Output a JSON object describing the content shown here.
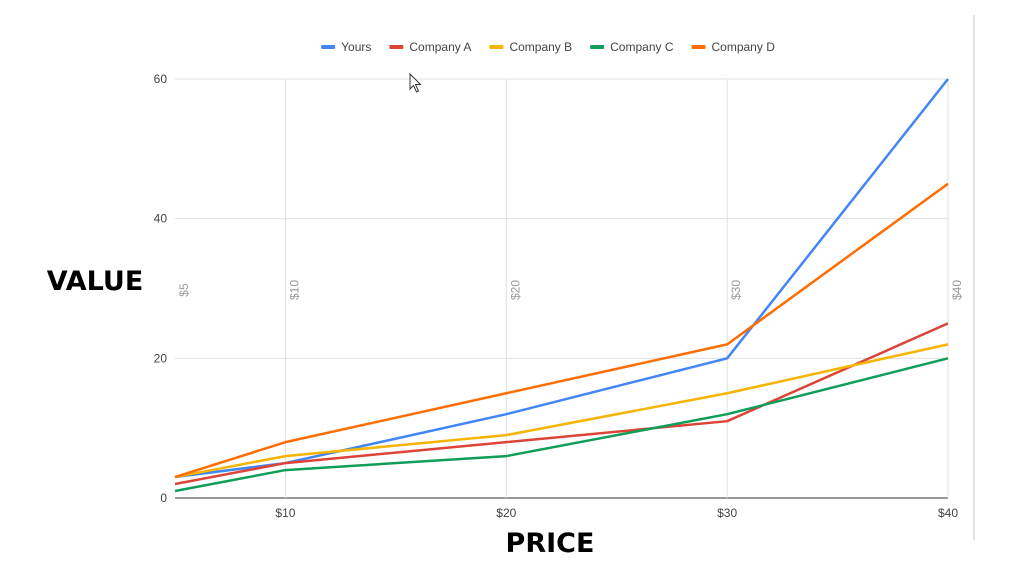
{
  "chart_data": {
    "type": "line",
    "x": [
      5,
      10,
      20,
      30,
      40
    ],
    "x_tick_labels": [
      "$10",
      "$20",
      "$30",
      "$40"
    ],
    "x_tick_values": [
      10,
      20,
      30,
      40
    ],
    "vertical_labels": [
      "$5",
      "$10",
      "$20",
      "$30",
      "$40"
    ],
    "xlabel": "PRICE",
    "ylabel": "VALUE",
    "xlim": [
      5,
      40
    ],
    "ylim": [
      0,
      60
    ],
    "y_ticks": [
      0,
      20,
      40,
      60
    ],
    "grid": true,
    "legend_position": "top",
    "series": [
      {
        "name": "Yours",
        "color": "#4285f4",
        "values": [
          3,
          5,
          12,
          20,
          60
        ]
      },
      {
        "name": "Company A",
        "color": "#db4437",
        "values": [
          2,
          5,
          8,
          11,
          25
        ]
      },
      {
        "name": "Company B",
        "color": "#f4b400",
        "values": [
          3,
          6,
          9,
          15,
          22
        ]
      },
      {
        "name": "Company C",
        "color": "#0f9d58",
        "values": [
          1,
          4,
          6,
          12,
          20
        ]
      },
      {
        "name": "Company D",
        "color": "#ff6d01",
        "values": [
          3,
          8,
          15,
          22,
          45
        ]
      }
    ]
  },
  "cursor": {
    "icon": "mouse-pointer-icon"
  }
}
